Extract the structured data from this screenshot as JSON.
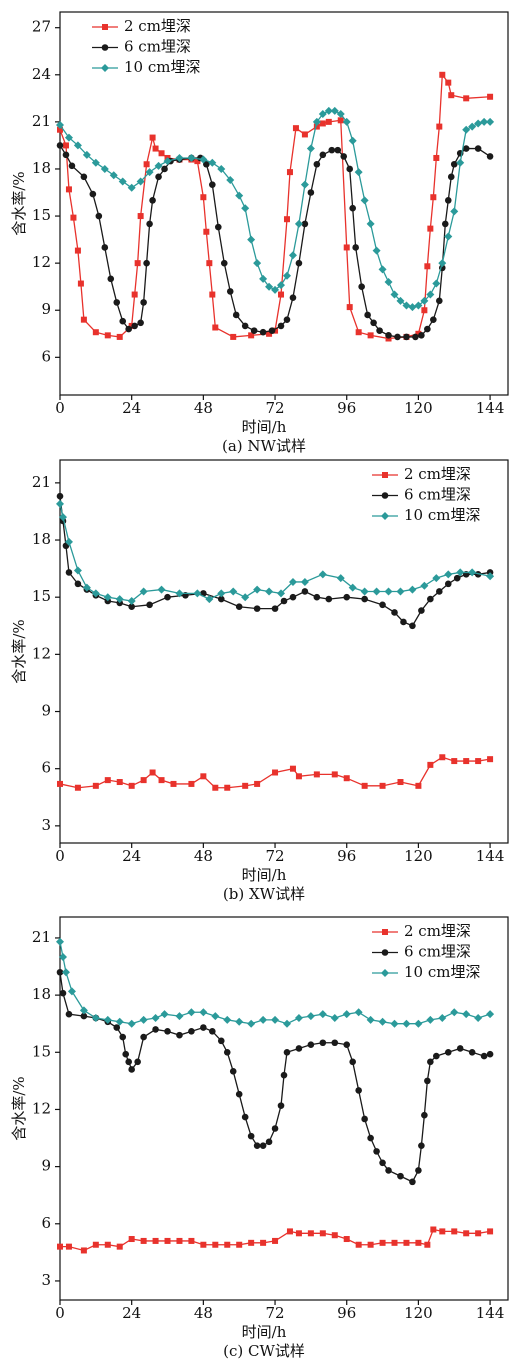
{
  "chart_data": [
    {
      "type": "line",
      "caption": "(a) NW试样",
      "xlabel": "时间/h",
      "ylabel": "含水率/%",
      "xlim": [
        0,
        150
      ],
      "xticks": [
        0,
        24,
        48,
        72,
        96,
        120,
        144
      ],
      "ylim": [
        3.6,
        28
      ],
      "yticks": [
        6,
        9,
        12,
        15,
        18,
        21,
        24,
        27
      ],
      "legend": "upper left",
      "series": [
        {
          "name": "2 cm埋深",
          "color": "#e8322c",
          "marker": "square",
          "x": [
            0,
            2,
            3,
            4.5,
            6,
            7,
            8,
            12,
            16,
            20,
            24,
            25,
            26,
            27,
            29,
            31,
            32,
            34,
            36,
            40,
            44,
            46,
            48,
            49,
            50,
            51,
            52,
            58,
            64,
            70,
            72,
            74,
            76,
            77,
            79,
            82,
            86,
            88,
            90,
            94,
            96,
            97,
            100,
            104,
            110,
            116,
            120,
            122,
            123,
            124,
            125,
            126,
            127,
            128,
            130,
            131,
            136,
            144
          ],
          "values": [
            20.5,
            19.5,
            16.7,
            14.9,
            12.8,
            10.7,
            8.4,
            7.6,
            7.4,
            7.3,
            8,
            10,
            12,
            15,
            18.3,
            20,
            19.3,
            19,
            18.7,
            18.6,
            18.6,
            18.5,
            16.2,
            14,
            12,
            10,
            7.9,
            7.3,
            7.4,
            7.5,
            7.7,
            10,
            14.8,
            17.8,
            20.6,
            20.2,
            20.7,
            20.9,
            21,
            21.1,
            13,
            9.2,
            7.6,
            7.4,
            7.2,
            7.3,
            7.5,
            9,
            11.8,
            14.2,
            16.2,
            18.7,
            20.7,
            24,
            23.5,
            22.7,
            22.5,
            22.6
          ]
        },
        {
          "name": "6 cm埋深",
          "color": "#1a1a1a",
          "marker": "circle",
          "x": [
            0,
            2,
            4,
            8,
            11,
            13,
            15,
            17,
            19,
            21,
            23,
            25,
            27,
            28,
            29,
            30,
            31,
            33,
            35,
            37,
            40,
            44,
            47,
            49,
            51,
            53,
            55,
            57,
            59,
            62,
            65,
            68,
            71,
            74,
            76,
            78,
            80,
            82,
            84,
            86,
            88,
            91,
            93,
            95,
            97,
            98,
            99,
            101,
            103,
            105,
            107,
            110,
            113,
            116,
            119,
            121,
            123,
            125,
            127,
            128,
            129,
            130,
            131,
            132,
            134,
            136,
            140,
            144
          ],
          "values": [
            19.5,
            18.9,
            18.2,
            17.5,
            16.4,
            15,
            13,
            11,
            9.5,
            8.3,
            7.8,
            8,
            8.2,
            9.5,
            12,
            14.5,
            16,
            17.5,
            18,
            18.5,
            18.6,
            18.7,
            18.7,
            18.3,
            17,
            14.3,
            12,
            10.2,
            8.7,
            8,
            7.7,
            7.6,
            7.7,
            8,
            8.4,
            9.8,
            12,
            14.5,
            16.5,
            18.3,
            18.9,
            19.2,
            19.2,
            18.8,
            18,
            15.5,
            13,
            10.5,
            8.7,
            8.2,
            7.7,
            7.4,
            7.3,
            7.3,
            7.3,
            7.4,
            7.8,
            8.4,
            9.6,
            11.7,
            14.5,
            16,
            17.5,
            18.3,
            19,
            19.3,
            19.3,
            18.8
          ]
        },
        {
          "name": "10 cm埋深",
          "color": "#2b9a9a",
          "marker": "diamond",
          "x": [
            0,
            3,
            6,
            9,
            12,
            15,
            18,
            21,
            24,
            27,
            30,
            33,
            36,
            40,
            44,
            48,
            51,
            54,
            57,
            60,
            62,
            64,
            66,
            68,
            70,
            72,
            74,
            76,
            78,
            80,
            82,
            84,
            86,
            88,
            90,
            92,
            94,
            96,
            98,
            100,
            102,
            104,
            106,
            108,
            110,
            112,
            114,
            116,
            118,
            120,
            122,
            124,
            126,
            128,
            130,
            132,
            134,
            136,
            138,
            140,
            142,
            144
          ],
          "values": [
            20.8,
            20,
            19.5,
            18.9,
            18.4,
            18,
            17.6,
            17.2,
            16.8,
            17.2,
            17.8,
            18.2,
            18.5,
            18.7,
            18.7,
            18.6,
            18.4,
            18,
            17.3,
            16.3,
            15.5,
            13.5,
            12,
            11,
            10.5,
            10.3,
            10.6,
            11.2,
            12.5,
            14.5,
            17,
            19.3,
            21,
            21.5,
            21.7,
            21.7,
            21.5,
            21,
            19.8,
            17.8,
            16,
            14.5,
            12.8,
            11.6,
            10.8,
            10,
            9.6,
            9.3,
            9.2,
            9.3,
            9.6,
            10,
            10.7,
            12,
            13.7,
            15.3,
            18.4,
            20.5,
            20.7,
            20.9,
            21,
            21
          ]
        }
      ]
    },
    {
      "type": "line",
      "caption": "(b) XW试样",
      "xlabel": "时间/h",
      "ylabel": "含水率/%",
      "xlim": [
        0,
        150
      ],
      "xticks": [
        0,
        24,
        48,
        72,
        96,
        120,
        144
      ],
      "ylim": [
        2.1,
        22.2
      ],
      "yticks": [
        3,
        6,
        9,
        12,
        15,
        18,
        21
      ],
      "legend": "upper right",
      "series": [
        {
          "name": "2 cm埋深",
          "color": "#e8322c",
          "marker": "square",
          "x": [
            0,
            6,
            12,
            16,
            20,
            24,
            28,
            31,
            34,
            38,
            44,
            48,
            52,
            56,
            62,
            66,
            72,
            78,
            80,
            86,
            92,
            96,
            102,
            108,
            114,
            120,
            124,
            128,
            132,
            136,
            140,
            144
          ],
          "values": [
            5.2,
            5,
            5.1,
            5.4,
            5.3,
            5.1,
            5.4,
            5.8,
            5.4,
            5.2,
            5.2,
            5.6,
            5,
            5,
            5.1,
            5.2,
            5.8,
            6,
            5.6,
            5.7,
            5.7,
            5.5,
            5.1,
            5.1,
            5.3,
            5.1,
            6.2,
            6.6,
            6.4,
            6.4,
            6.4,
            6.5
          ]
        },
        {
          "name": "6 cm埋深",
          "color": "#1a1a1a",
          "marker": "circle",
          "x": [
            0,
            1,
            2,
            3,
            6,
            9,
            12,
            16,
            20,
            24,
            30,
            36,
            42,
            48,
            54,
            60,
            66,
            72,
            75,
            78,
            82,
            86,
            90,
            96,
            102,
            108,
            112,
            115,
            118,
            121,
            124,
            127,
            130,
            133,
            136,
            140,
            144
          ],
          "values": [
            20.3,
            19,
            17.7,
            16.3,
            15.7,
            15.4,
            15.1,
            14.8,
            14.7,
            14.5,
            14.6,
            15,
            15.1,
            15.2,
            14.9,
            14.5,
            14.4,
            14.4,
            14.8,
            15,
            15.3,
            15,
            14.9,
            15,
            14.9,
            14.6,
            14.2,
            13.7,
            13.5,
            14.3,
            14.9,
            15.3,
            15.7,
            16,
            16.2,
            16.2,
            16.3
          ]
        },
        {
          "name": "10 cm埋深",
          "color": "#2b9a9a",
          "marker": "diamond",
          "x": [
            0,
            1,
            3,
            6,
            9,
            12,
            16,
            20,
            24,
            28,
            34,
            40,
            46,
            50,
            54,
            58,
            62,
            66,
            70,
            74,
            78,
            82,
            88,
            94,
            98,
            102,
            106,
            110,
            114,
            118,
            122,
            126,
            130,
            134,
            138,
            144
          ],
          "values": [
            19.9,
            19.2,
            17.9,
            16.4,
            15.5,
            15.2,
            15,
            14.9,
            14.8,
            15.3,
            15.4,
            15.2,
            15.2,
            14.9,
            15.2,
            15.3,
            15,
            15.4,
            15.3,
            15.2,
            15.8,
            15.8,
            16.2,
            16,
            15.5,
            15.3,
            15.3,
            15.3,
            15.3,
            15.4,
            15.6,
            16,
            16.2,
            16.3,
            16.3,
            16.1
          ]
        }
      ]
    },
    {
      "type": "line",
      "caption": "(c) CW试样",
      "xlabel": "时间/h",
      "ylabel": "含水率/%",
      "xlim": [
        0,
        150
      ],
      "xticks": [
        0,
        24,
        48,
        72,
        96,
        120,
        144
      ],
      "ylim": [
        2.0,
        22.1
      ],
      "yticks": [
        3,
        6,
        9,
        12,
        15,
        18,
        21
      ],
      "legend": "upper right",
      "series": [
        {
          "name": "2 cm埋深",
          "color": "#e8322c",
          "marker": "square",
          "x": [
            0,
            3,
            8,
            12,
            16,
            20,
            24,
            28,
            32,
            36,
            40,
            44,
            48,
            52,
            56,
            60,
            64,
            68,
            72,
            77,
            80,
            84,
            88,
            92,
            96,
            100,
            104,
            108,
            112,
            116,
            120,
            123,
            125,
            128,
            132,
            136,
            140,
            144
          ],
          "values": [
            4.8,
            4.8,
            4.6,
            4.9,
            4.9,
            4.8,
            5.2,
            5.1,
            5.1,
            5.1,
            5.1,
            5.1,
            4.9,
            4.9,
            4.9,
            4.9,
            5,
            5,
            5.1,
            5.6,
            5.5,
            5.5,
            5.5,
            5.4,
            5.2,
            4.9,
            4.9,
            5,
            5,
            5,
            5,
            4.9,
            5.7,
            5.6,
            5.6,
            5.5,
            5.5,
            5.6
          ]
        },
        {
          "name": "6 cm埋深",
          "color": "#1a1a1a",
          "marker": "circle",
          "x": [
            0,
            1,
            3,
            8,
            12,
            16,
            19,
            21,
            22,
            23,
            24,
            26,
            28,
            32,
            36,
            40,
            44,
            48,
            51,
            54,
            56,
            58,
            60,
            62,
            64,
            66,
            68,
            70,
            72,
            74,
            75,
            76,
            80,
            84,
            88,
            92,
            96,
            98,
            100,
            102,
            104,
            106,
            108,
            110,
            114,
            118,
            120,
            121,
            122,
            123,
            124,
            126,
            130,
            134,
            138,
            142,
            144
          ],
          "values": [
            19.2,
            18.1,
            17,
            16.9,
            16.8,
            16.6,
            16.3,
            15.8,
            14.9,
            14.5,
            14.1,
            14.5,
            15.8,
            16.2,
            16.1,
            15.9,
            16.1,
            16.3,
            16.1,
            15.6,
            15,
            14,
            12.8,
            11.6,
            10.6,
            10.1,
            10.1,
            10.3,
            11,
            12.2,
            13.8,
            15,
            15.2,
            15.4,
            15.5,
            15.5,
            15.4,
            14.5,
            13,
            11.5,
            10.5,
            9.8,
            9.2,
            8.8,
            8.5,
            8.2,
            8.8,
            10.1,
            11.7,
            13.5,
            14.5,
            14.8,
            15,
            15.2,
            15,
            14.8,
            14.9
          ]
        },
        {
          "name": "10 cm埋深",
          "color": "#2b9a9a",
          "marker": "diamond",
          "x": [
            0,
            1,
            2,
            4,
            8,
            12,
            16,
            20,
            24,
            28,
            32,
            35,
            40,
            44,
            48,
            52,
            56,
            60,
            64,
            68,
            72,
            76,
            80,
            84,
            88,
            92,
            96,
            100,
            104,
            108,
            112,
            116,
            120,
            124,
            128,
            132,
            136,
            140,
            144
          ],
          "values": [
            20.8,
            20,
            19.2,
            18.2,
            17.2,
            16.8,
            16.7,
            16.6,
            16.5,
            16.7,
            16.8,
            17,
            16.9,
            17.1,
            17.1,
            16.9,
            16.7,
            16.6,
            16.5,
            16.7,
            16.7,
            16.5,
            16.8,
            16.9,
            17,
            16.8,
            17,
            17.1,
            16.7,
            16.6,
            16.5,
            16.5,
            16.5,
            16.7,
            16.8,
            17.1,
            17,
            16.8,
            17
          ]
        }
      ]
    }
  ]
}
